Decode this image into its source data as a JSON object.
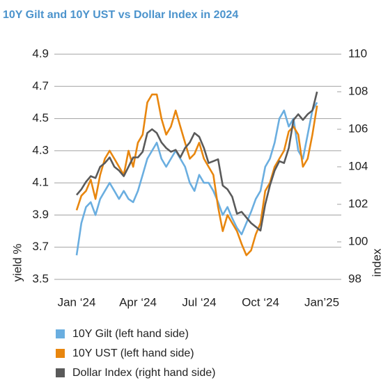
{
  "chart_data": {
    "type": "line",
    "title": "10Y Gilt and 10Y UST vs Dollar Index in 2024",
    "ylabel": "yield %",
    "y2label": "index",
    "categories": [
      "Jan ‘24",
      null,
      null,
      null,
      null,
      null,
      null,
      null,
      null,
      null,
      null,
      null,
      null,
      "Apr ‘24",
      null,
      null,
      null,
      null,
      null,
      null,
      null,
      null,
      null,
      null,
      null,
      null,
      "Jul ‘24",
      null,
      null,
      null,
      null,
      null,
      null,
      null,
      null,
      null,
      null,
      null,
      null,
      "Oct ‘24",
      null,
      null,
      null,
      null,
      null,
      null,
      null,
      null,
      null,
      null,
      null,
      null,
      "Jan’25"
    ],
    "series": [
      {
        "name": "10Y Gilt (left hand side)",
        "color": "#6aaee0",
        "values": [
          3.65,
          3.85,
          3.95,
          3.98,
          3.9,
          4.0,
          4.05,
          4.1,
          4.05,
          4.0,
          4.05,
          4.0,
          3.98,
          4.05,
          4.15,
          4.25,
          4.3,
          4.35,
          4.25,
          4.2,
          4.25,
          4.3,
          4.25,
          4.2,
          4.1,
          4.05,
          4.15,
          4.1,
          4.1,
          4.05,
          3.98,
          3.9,
          3.95,
          3.88,
          3.82,
          3.78,
          3.85,
          3.92,
          4.0,
          4.05,
          4.2,
          4.25,
          4.35,
          4.5,
          4.55,
          4.45,
          4.5,
          4.3,
          4.25,
          4.4,
          4.55,
          4.6,
          null
        ]
      },
      {
        "name": "10Y UST (left hand side)",
        "color": "#e8860e",
        "values": [
          3.93,
          4.02,
          4.05,
          4.12,
          4.0,
          4.15,
          4.25,
          4.3,
          4.25,
          4.2,
          4.15,
          4.3,
          4.2,
          4.35,
          4.4,
          4.6,
          4.65,
          4.65,
          4.5,
          4.4,
          4.45,
          4.55,
          4.45,
          4.35,
          4.25,
          4.28,
          4.35,
          4.25,
          4.2,
          4.15,
          3.95,
          3.8,
          3.9,
          3.85,
          3.8,
          3.72,
          3.65,
          3.68,
          3.78,
          3.85,
          4.05,
          4.1,
          4.2,
          4.25,
          4.3,
          4.42,
          4.45,
          4.4,
          4.2,
          4.25,
          4.4,
          4.58,
          null
        ]
      },
      {
        "name": "Dollar Index (right hand side)",
        "color": "#5a5a5a",
        "axis": "y2",
        "values": [
          102.5,
          102.8,
          103.2,
          103.5,
          103.4,
          104.0,
          104.2,
          104.5,
          104.0,
          103.8,
          103.5,
          104.0,
          104.5,
          104.5,
          104.8,
          105.8,
          106.0,
          105.8,
          105.3,
          105.0,
          104.8,
          104.9,
          104.5,
          105.0,
          105.3,
          105.8,
          105.6,
          105.0,
          104.2,
          104.3,
          104.4,
          103.0,
          102.8,
          102.4,
          101.5,
          101.6,
          101.3,
          101.0,
          100.8,
          100.6,
          102.0,
          103.0,
          103.8,
          104.3,
          104.2,
          105.0,
          106.5,
          106.8,
          106.5,
          106.8,
          107.0,
          108.0,
          null
        ]
      }
    ],
    "ylim": [
      3.5,
      4.9
    ],
    "yticks": [
      3.5,
      3.7,
      3.9,
      4.1,
      4.3,
      4.5,
      4.7,
      4.9
    ],
    "y2lim": [
      98,
      110
    ],
    "y2ticks": [
      98,
      100,
      102,
      104,
      106,
      108,
      110
    ],
    "grid": true,
    "legend": "bottom"
  }
}
